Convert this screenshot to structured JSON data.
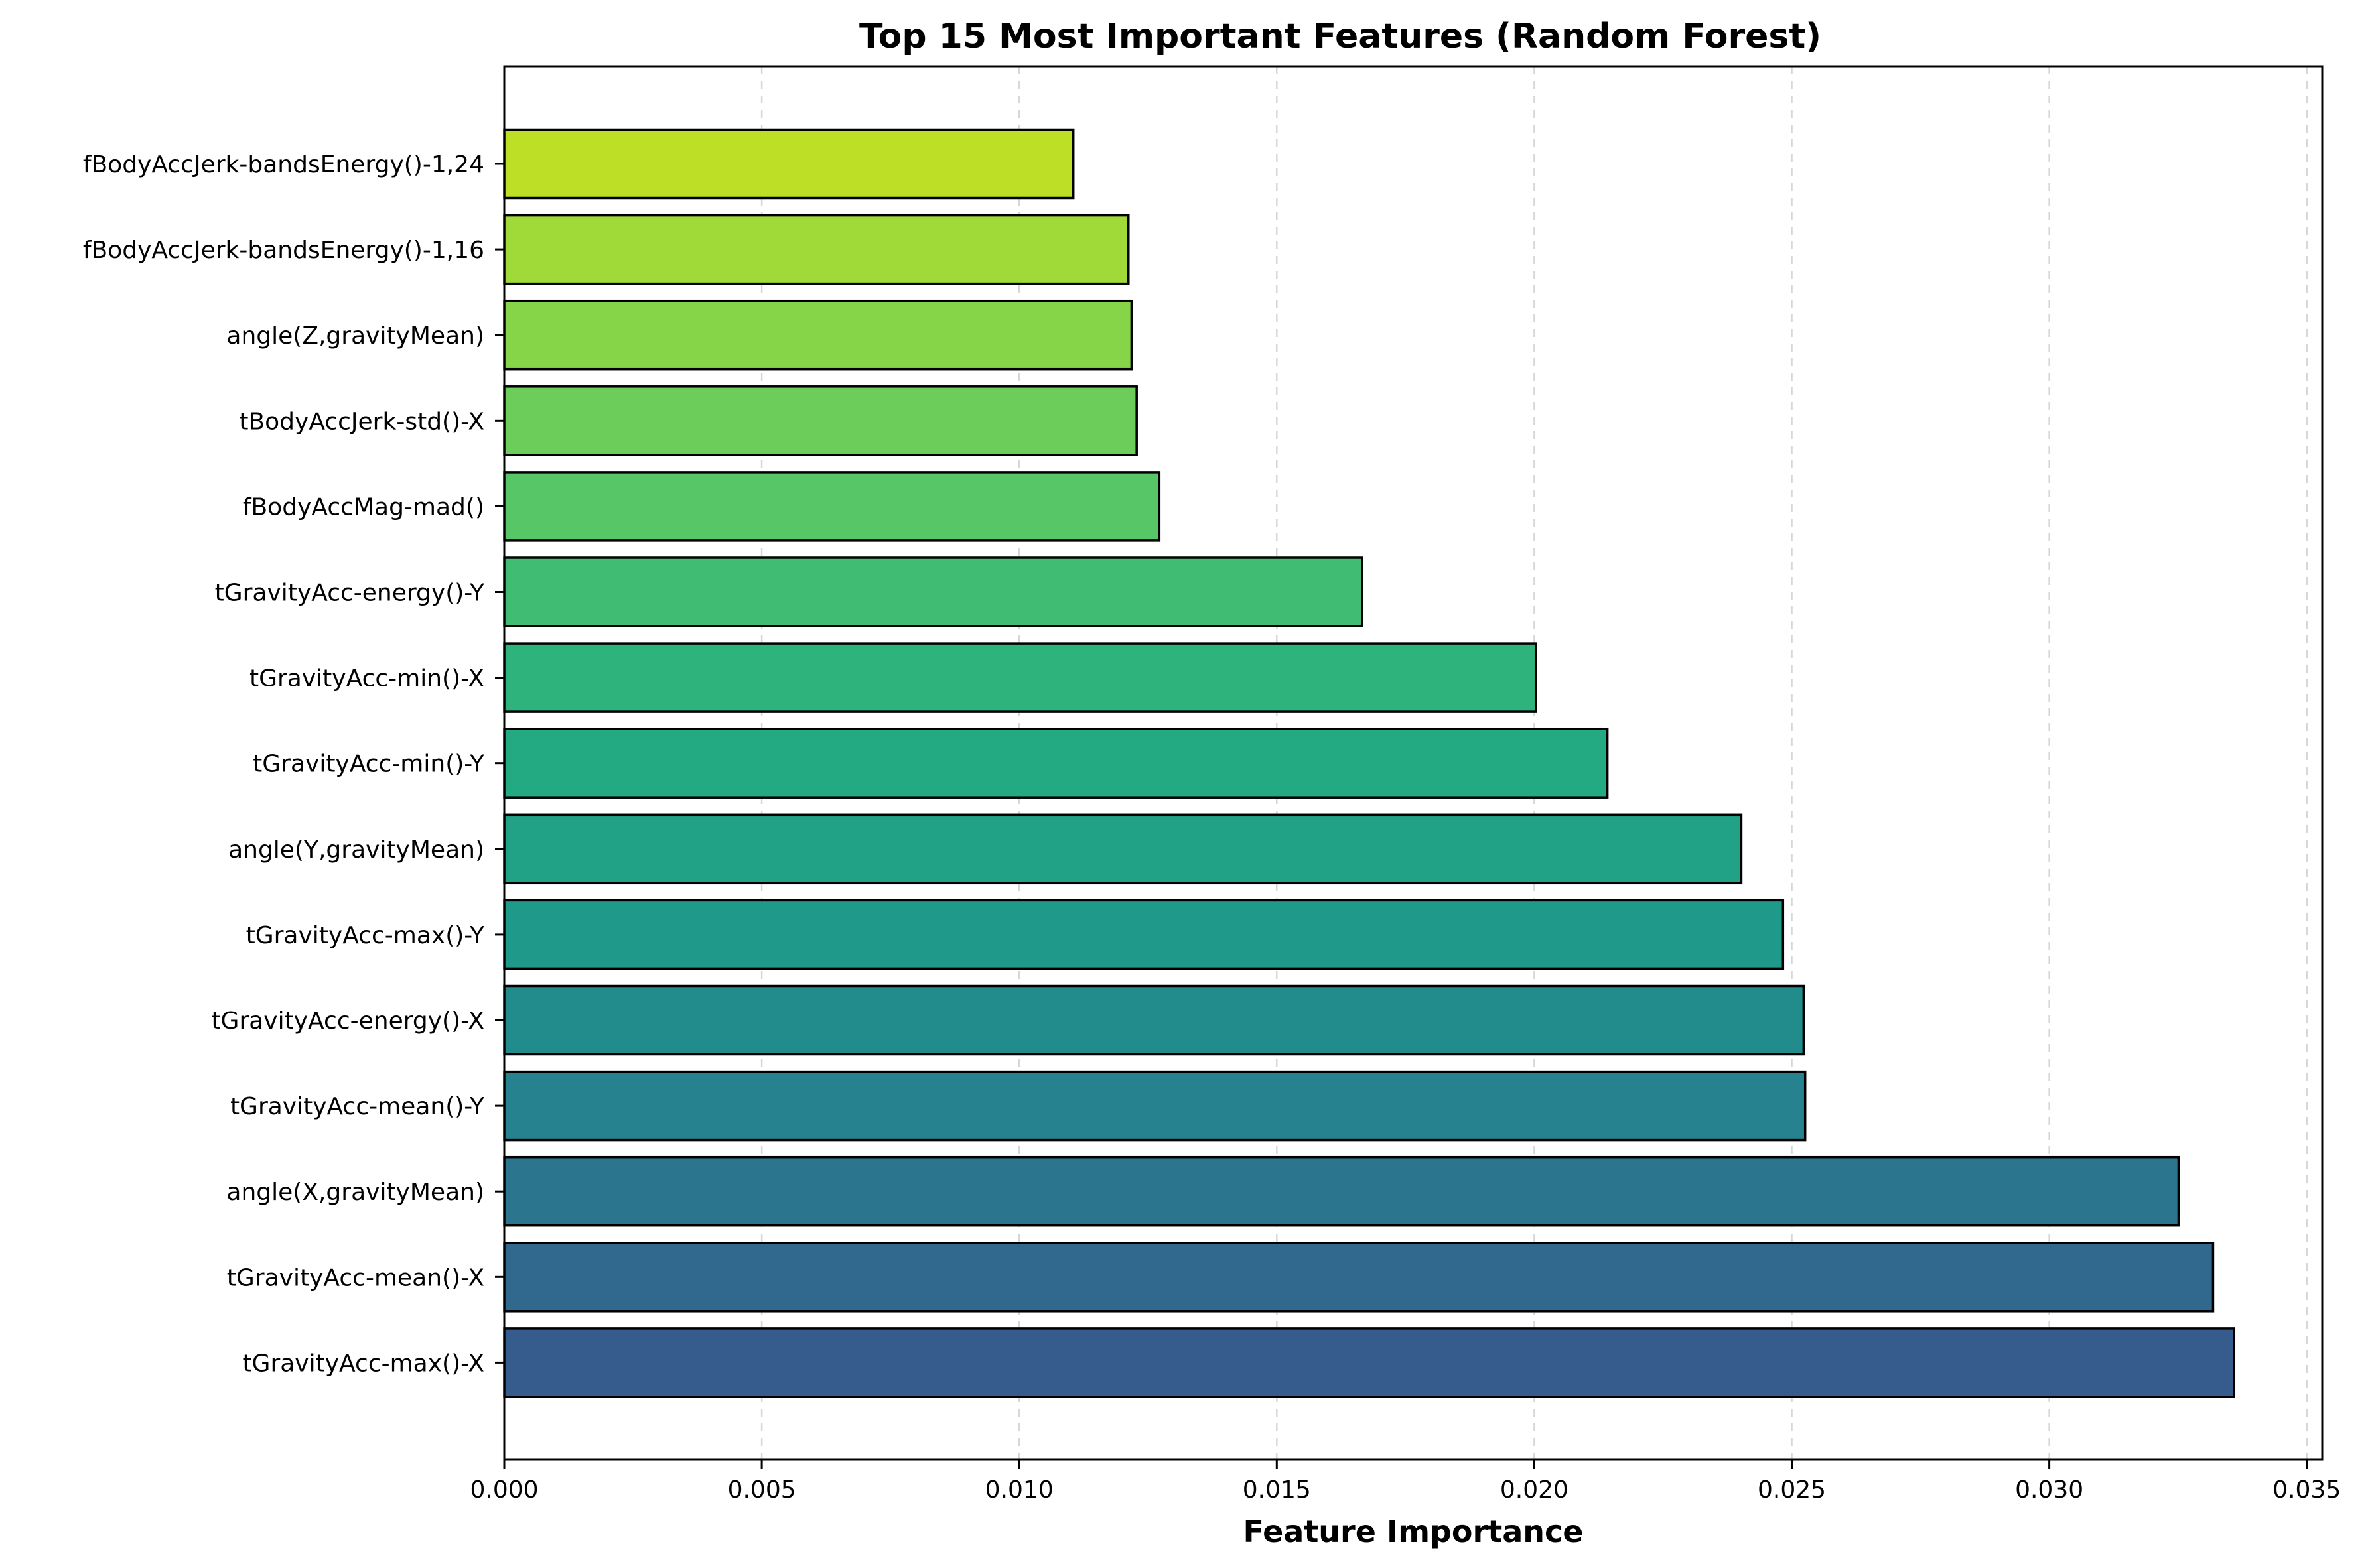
{
  "chart_data": {
    "type": "bar",
    "orientation": "horizontal",
    "title": "Top 15 Most Important Features (Random Forest)",
    "xlabel": "Feature Importance",
    "ylabel": "",
    "xlim": [
      0,
      0.0353
    ],
    "xticks": [
      "0.000",
      "0.005",
      "0.010",
      "0.015",
      "0.020",
      "0.025",
      "0.030",
      "0.035"
    ],
    "grid": "x-axis, dashed",
    "categories": [
      "fBodyAccJerk-bandsEnergy()-1,24",
      "fBodyAccJerk-bandsEnergy()-1,16",
      "angle(Z,gravityMean)",
      "tBodyAccJerk-std()-X",
      "fBodyAccMag-mad()",
      "tGravityAcc-energy()-Y",
      "tGravityAcc-min()-X",
      "tGravityAcc-min()-Y",
      "angle(Y,gravityMean)",
      "tGravityAcc-max()-Y",
      "tGravityAcc-energy()-X",
      "tGravityAcc-mean()-Y",
      "angle(X,gravityMean)",
      "tGravityAcc-mean()-X",
      "tGravityAcc-max()-X"
    ],
    "values": [
      0.01105,
      0.01212,
      0.01218,
      0.01228,
      0.01272,
      0.01666,
      0.02003,
      0.02142,
      0.02402,
      0.02483,
      0.02523,
      0.02526,
      0.03251,
      0.03318,
      0.03359
    ],
    "colors": [
      "#bddf26",
      "#a0da39",
      "#86d549",
      "#6ccd5a",
      "#56c667",
      "#40bd72",
      "#2eb37c",
      "#24aa83",
      "#21a185",
      "#1f9a8a",
      "#228c8d",
      "#26828e",
      "#2b758e",
      "#31688e",
      "#365c8d"
    ]
  }
}
